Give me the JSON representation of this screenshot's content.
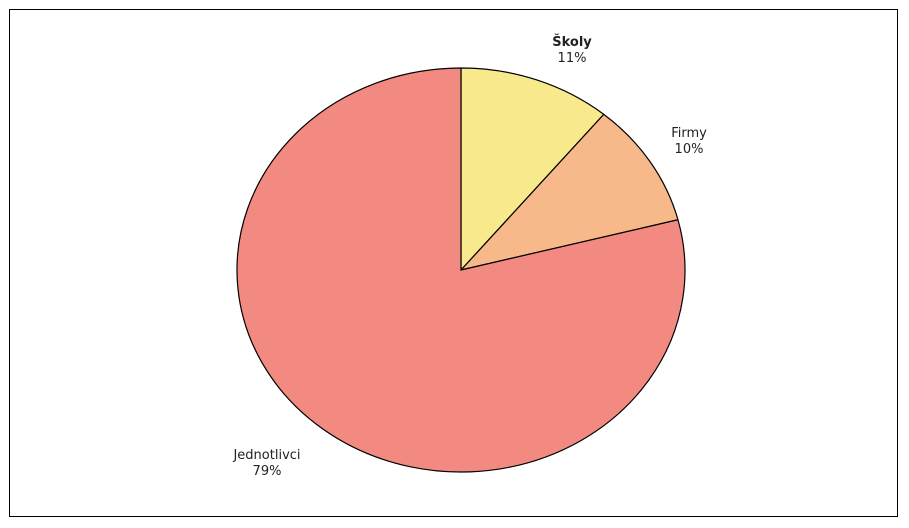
{
  "chart_data": {
    "type": "pie",
    "title": "",
    "slices": [
      {
        "name": "Školy",
        "value": 11,
        "label": "11%",
        "color": "#f8e98c",
        "bold": true
      },
      {
        "name": "Firmy",
        "value": 10,
        "label": "10%",
        "color": "#f7b98a",
        "bold": false
      },
      {
        "name": "Jednotlivci",
        "value": 79,
        "label": "79%",
        "color": "#f38a82",
        "bold": false
      }
    ],
    "start_angle_deg": 0,
    "direction": "clockwise",
    "legend": "none"
  }
}
